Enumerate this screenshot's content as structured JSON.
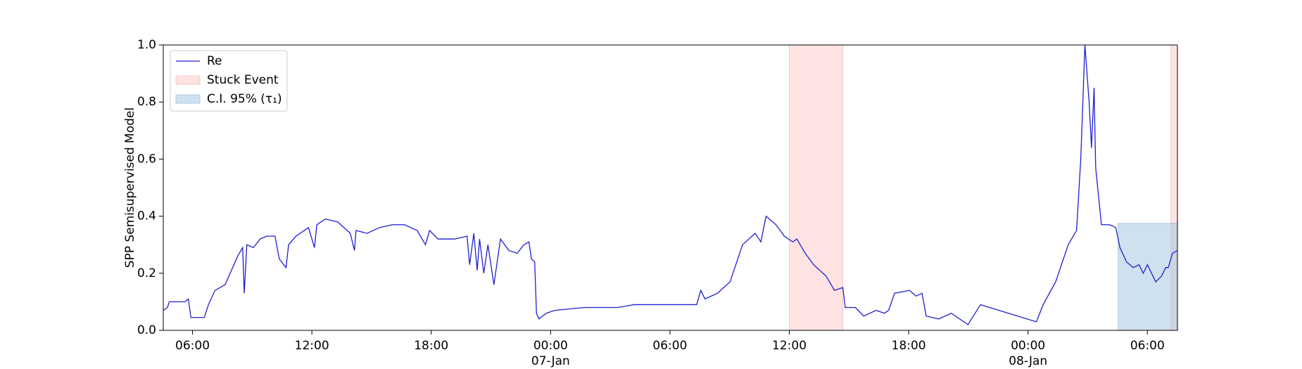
{
  "chart_data": {
    "type": "line",
    "ylabel": "SPP Semisupervised Model",
    "xlim": [
      4.53,
      55.51
    ],
    "ylim": [
      0,
      1
    ],
    "xticks": [
      {
        "value": 6,
        "label": "06:00"
      },
      {
        "value": 12,
        "label": "12:00"
      },
      {
        "value": 18,
        "label": "18:00"
      },
      {
        "value": 24,
        "label": "00:00\n07-Jan\n1900"
      },
      {
        "value": 30,
        "label": "06:00"
      },
      {
        "value": 36,
        "label": "12:00"
      },
      {
        "value": 42,
        "label": "18:00"
      },
      {
        "value": 48,
        "label": "00:00\n08-Jan"
      },
      {
        "value": 54,
        "label": "06:00"
      }
    ],
    "yticks": [
      {
        "value": 0,
        "label": "0.0"
      },
      0.2,
      0.4,
      0.6,
      0.8,
      {
        "value": 1,
        "label": "1.0"
      }
    ],
    "legend": "upper left",
    "series": [
      {
        "name": "Re",
        "color": "#1f1fd0",
        "x": [
          4.53,
          4.74,
          4.83,
          5.62,
          5.79,
          5.92,
          6.59,
          6.8,
          7.13,
          7.64,
          8.27,
          8.52,
          8.6,
          8.73,
          9.06,
          9.4,
          9.73,
          10.15,
          10.36,
          10.7,
          10.83,
          11.2,
          11.83,
          12.13,
          12.25,
          12.67,
          13.3,
          13.93,
          14.14,
          14.22,
          14.77,
          15.4,
          16.03,
          16.66,
          17.29,
          17.71,
          17.92,
          18.34,
          19.17,
          19.8,
          19.93,
          20.14,
          20.31,
          20.43,
          20.64,
          20.85,
          21.15,
          21.48,
          21.9,
          22.32,
          22.66,
          22.91,
          23.04,
          23.2,
          23.29,
          23.41,
          23.79,
          24.21,
          25.68,
          27.36,
          28.2,
          29.45,
          30.29,
          31.34,
          31.55,
          31.76,
          32.39,
          33.02,
          33.65,
          34.28,
          34.57,
          34.83,
          35.33,
          35.75,
          36.17,
          36.38,
          36.8,
          37.22,
          37.85,
          38.27,
          38.69,
          38.81,
          39.32,
          39.74,
          40.36,
          40.78,
          40.99,
          41.29,
          42.04,
          42.38,
          42.67,
          42.88,
          43.51,
          44.14,
          44.56,
          44.98,
          45.61,
          48.42,
          48.76,
          49.39,
          50.02,
          50.44,
          50.65,
          50.86,
          51.07,
          51.19,
          51.32,
          51.4,
          51.69,
          52.11,
          52.41,
          52.62,
          52.95,
          53.29,
          53.58,
          53.79,
          54.0,
          54.42,
          54.71,
          54.92,
          55.05,
          55.26,
          55.51
        ],
        "values": [
          0.07,
          0.08,
          0.1,
          0.1,
          0.11,
          0.045,
          0.045,
          0.09,
          0.14,
          0.16,
          0.26,
          0.29,
          0.13,
          0.3,
          0.29,
          0.32,
          0.33,
          0.33,
          0.25,
          0.22,
          0.3,
          0.33,
          0.36,
          0.29,
          0.37,
          0.39,
          0.38,
          0.34,
          0.28,
          0.35,
          0.34,
          0.36,
          0.37,
          0.37,
          0.35,
          0.3,
          0.35,
          0.32,
          0.32,
          0.33,
          0.23,
          0.34,
          0.21,
          0.32,
          0.2,
          0.3,
          0.16,
          0.32,
          0.28,
          0.27,
          0.3,
          0.31,
          0.25,
          0.24,
          0.06,
          0.04,
          0.06,
          0.07,
          0.08,
          0.08,
          0.09,
          0.09,
          0.09,
          0.09,
          0.14,
          0.11,
          0.13,
          0.17,
          0.3,
          0.34,
          0.31,
          0.4,
          0.37,
          0.33,
          0.31,
          0.32,
          0.27,
          0.23,
          0.19,
          0.14,
          0.15,
          0.08,
          0.08,
          0.05,
          0.07,
          0.06,
          0.07,
          0.13,
          0.14,
          0.12,
          0.13,
          0.05,
          0.04,
          0.06,
          0.04,
          0.02,
          0.09,
          0.03,
          0.09,
          0.17,
          0.3,
          0.35,
          0.6,
          1.0,
          0.8,
          0.64,
          0.85,
          0.57,
          0.37,
          0.37,
          0.36,
          0.29,
          0.24,
          0.22,
          0.23,
          0.2,
          0.23,
          0.17,
          0.19,
          0.22,
          0.22,
          0.27,
          0.28
        ]
      }
    ],
    "stuck_events": {
      "name": "Stuck Event",
      "color": "#ffcccc",
      "ranges": [
        [
          36.0,
          38.69
        ],
        [
          55.18,
          55.51
        ]
      ]
    },
    "ci": {
      "name": "C.I. 95% (τ₁)",
      "color": "#a8c8e0",
      "x": [
        52.53,
        55.51
      ],
      "y": [
        0,
        0.375
      ]
    }
  }
}
